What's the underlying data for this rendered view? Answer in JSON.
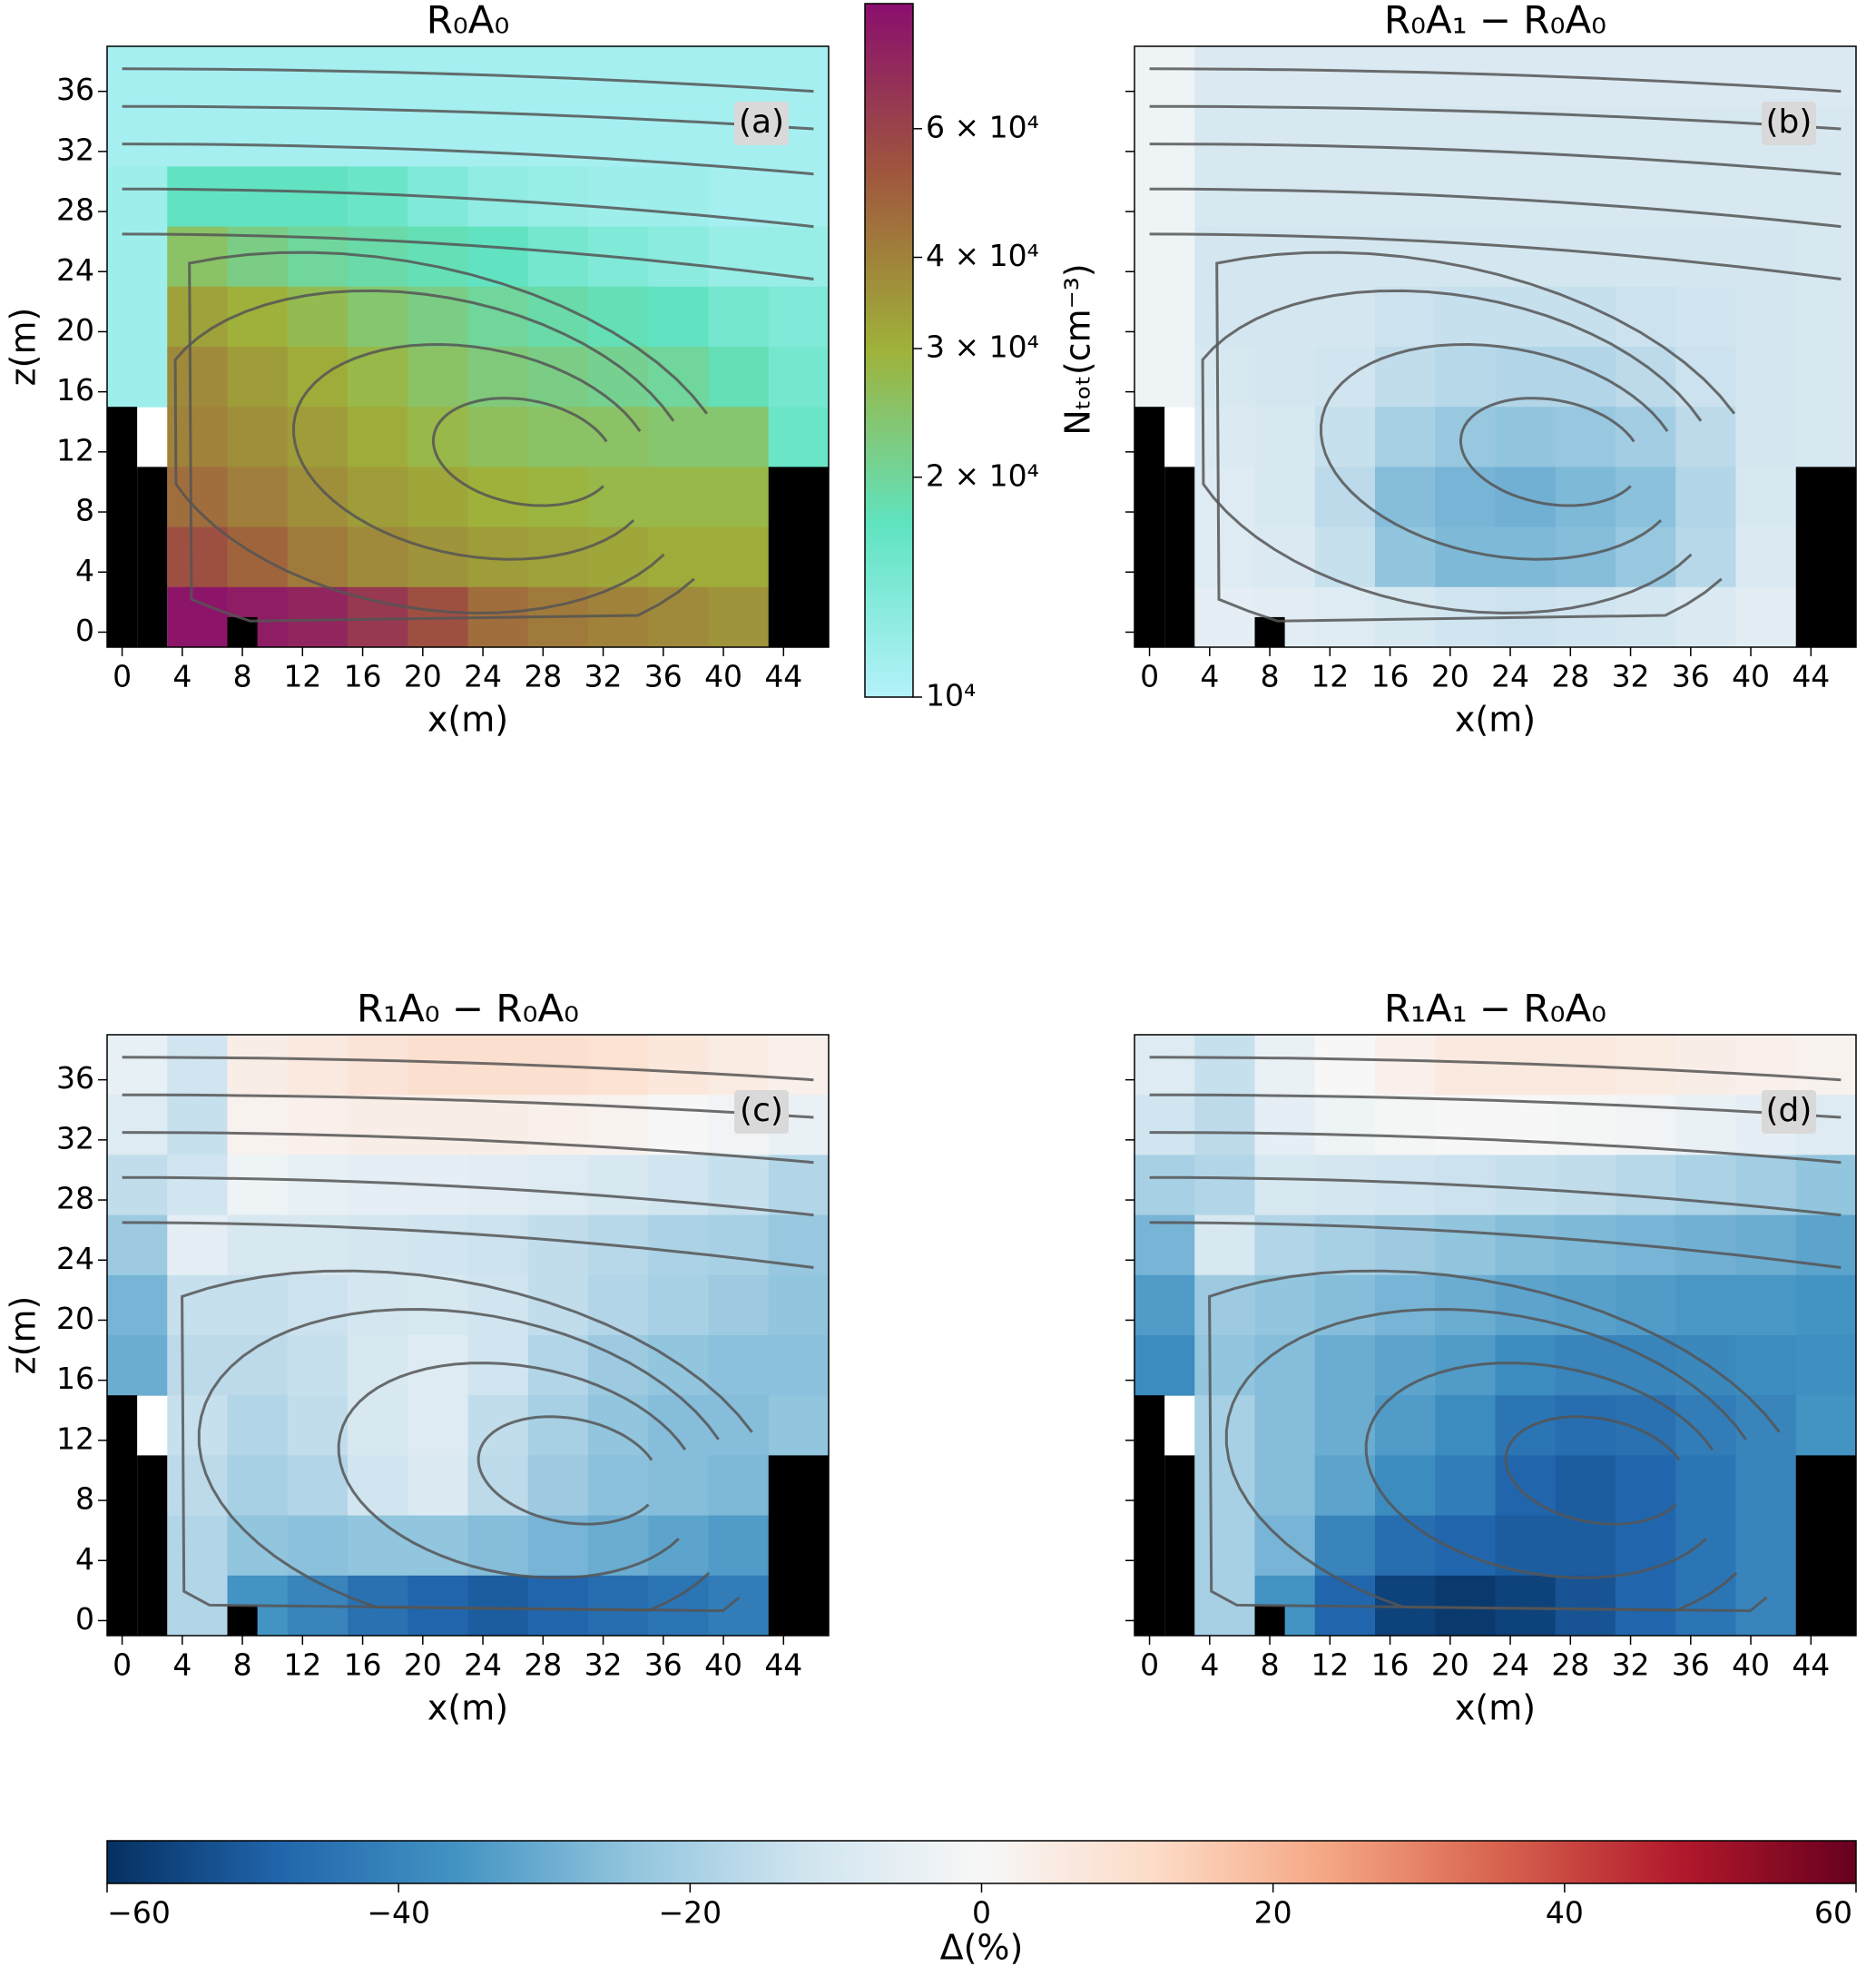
{
  "chart_data": [
    {
      "type": "heatmap",
      "title": "R₀A₀",
      "label": "(a)",
      "xlabel": "x(m)",
      "ylabel": "z(m)",
      "xlim": [
        -1,
        47
      ],
      "ylim": [
        -1,
        39
      ],
      "xticks": [
        0,
        4,
        8,
        12,
        16,
        20,
        24,
        28,
        32,
        36,
        40,
        44
      ],
      "yticks": [
        0,
        4,
        8,
        12,
        16,
        20,
        24,
        28,
        32,
        36
      ],
      "ytick_labels": true,
      "z": [
        [
          11000,
          11000,
          11000,
          11000,
          11000,
          11000,
          11000,
          11000,
          11000,
          11000,
          11000,
          11000
        ],
        [
          11000,
          11000,
          11000,
          11000,
          11000,
          11000,
          11000,
          11000,
          11000,
          11000,
          11000,
          11000
        ],
        [
          11500,
          17000,
          17000,
          17000,
          16000,
          14000,
          12500,
          12000,
          11500,
          11500,
          11000,
          11000
        ],
        [
          11500,
          25000,
          22000,
          20000,
          19000,
          18000,
          17000,
          15000,
          14000,
          13000,
          12000,
          12000
        ],
        [
          11500,
          33000,
          30000,
          27000,
          24000,
          22000,
          20000,
          19000,
          18000,
          17000,
          15000,
          14000
        ],
        [
          11500,
          38000,
          34000,
          31000,
          28000,
          25000,
          23000,
          22000,
          21000,
          20000,
          18000,
          15000
        ],
        [
          null,
          40000,
          37000,
          34000,
          31000,
          28000,
          26000,
          25000,
          25000,
          24000,
          24000,
          16000
        ],
        [
          null,
          45000,
          41000,
          37000,
          34000,
          32000,
          30000,
          29000,
          28000,
          28000,
          28000,
          null
        ],
        [
          null,
          55000,
          48000,
          42000,
          38000,
          36000,
          34000,
          33000,
          32000,
          31000,
          31000,
          null
        ],
        [
          null,
          85000,
          80000,
          75000,
          65000,
          55000,
          45000,
          42000,
          40000,
          38000,
          36000,
          null
        ]
      ]
    },
    {
      "type": "heatmap",
      "title": "R₀A₁ − R₀A₀",
      "label": "(b)",
      "xlabel": "x(m)",
      "xlim": [
        -1,
        47
      ],
      "ylim": [
        -1,
        39
      ],
      "xticks": [
        0,
        4,
        8,
        12,
        16,
        20,
        24,
        28,
        32,
        36,
        40,
        44
      ],
      "yticks": [
        0,
        4,
        8,
        12,
        16,
        20,
        24,
        28,
        32,
        36
      ],
      "ytick_labels": false,
      "z": [
        [
          -3,
          -9,
          -9,
          -9,
          -9,
          -9,
          -9,
          -9,
          -9,
          -9,
          -9,
          -9
        ],
        [
          -3,
          -10,
          -10,
          -10,
          -10,
          -10,
          -10,
          -10,
          -10,
          -10,
          -10,
          -10
        ],
        [
          -3,
          -10,
          -10,
          -10,
          -10,
          -10,
          -10,
          -10,
          -10,
          -10,
          -10,
          -10
        ],
        [
          -3,
          -11,
          -11,
          -11,
          -11,
          -11,
          -11,
          -11,
          -11,
          -11,
          -11,
          -10
        ],
        [
          -3,
          -11,
          -11,
          -11,
          -13,
          -14,
          -14,
          -14,
          -13,
          -12,
          -11,
          -10
        ],
        [
          -3,
          -10,
          -11,
          -12,
          -15,
          -17,
          -18,
          -18,
          -16,
          -13,
          -11,
          -10
        ],
        [
          null,
          -9,
          -10,
          -14,
          -20,
          -23,
          -24,
          -23,
          -21,
          -16,
          -11,
          -10
        ],
        [
          null,
          -8,
          -10,
          -16,
          -26,
          -28,
          -29,
          -27,
          -25,
          -18,
          -10,
          null
        ],
        [
          null,
          -8,
          -9,
          -14,
          -24,
          -27,
          -27,
          -26,
          -23,
          -17,
          -9,
          null
        ],
        [
          null,
          -6,
          -7,
          -8,
          -10,
          -12,
          -13,
          -12,
          -11,
          -9,
          -7,
          null
        ]
      ]
    },
    {
      "type": "heatmap",
      "title": "R₁A₀ − R₀A₀",
      "label": "(c)",
      "xlabel": "x(m)",
      "ylabel": "z(m)",
      "xlim": [
        -1,
        47
      ],
      "ylim": [
        -1,
        39
      ],
      "xticks": [
        0,
        4,
        8,
        12,
        16,
        20,
        24,
        28,
        32,
        36,
        40,
        44
      ],
      "yticks": [
        0,
        4,
        8,
        12,
        16,
        20,
        24,
        28,
        32,
        36
      ],
      "ytick_labels": true,
      "z": [
        [
          -5,
          -12,
          4,
          6,
          8,
          10,
          10,
          10,
          9,
          7,
          5,
          3
        ],
        [
          -8,
          -14,
          2,
          3,
          4,
          4,
          4,
          3,
          2,
          0,
          -2,
          -4
        ],
        [
          -15,
          -12,
          -3,
          -5,
          -6,
          -6,
          -7,
          -8,
          -10,
          -12,
          -14,
          -18
        ],
        [
          -22,
          -6,
          -10,
          -10,
          -11,
          -12,
          -13,
          -15,
          -17,
          -19,
          -20,
          -23
        ],
        [
          -28,
          -14,
          -14,
          -13,
          -11,
          -10,
          -12,
          -15,
          -18,
          -20,
          -22,
          -24
        ],
        [
          -30,
          -16,
          -16,
          -14,
          -10,
          -8,
          -12,
          -18,
          -22,
          -24,
          -25,
          -25
        ],
        [
          null,
          -14,
          -18,
          -15,
          -10,
          -8,
          -15,
          -20,
          -24,
          -26,
          -26,
          -24
        ],
        [
          null,
          -16,
          -20,
          -18,
          -12,
          -9,
          -16,
          -22,
          -25,
          -26,
          -27,
          null
        ],
        [
          null,
          -18,
          -24,
          -25,
          -24,
          -24,
          -26,
          -28,
          -30,
          -32,
          -34,
          null
        ],
        [
          null,
          -18,
          -36,
          -40,
          -45,
          -48,
          -50,
          -48,
          -46,
          -44,
          -42,
          null
        ]
      ]
    },
    {
      "type": "heatmap",
      "title": "R₁A₁ − R₀A₀",
      "label": "(d)",
      "xlabel": "x(m)",
      "xlim": [
        -1,
        47
      ],
      "ylim": [
        -1,
        39
      ],
      "xticks": [
        0,
        4,
        8,
        12,
        16,
        20,
        24,
        28,
        32,
        36,
        40,
        44
      ],
      "yticks": [
        0,
        4,
        8,
        12,
        16,
        20,
        24,
        28,
        32,
        36
      ],
      "ytick_labels": false,
      "z": [
        [
          -8,
          -14,
          -4,
          0,
          3,
          6,
          6,
          6,
          5,
          4,
          3,
          2
        ],
        [
          -12,
          -16,
          -6,
          -3,
          -1,
          0,
          0,
          -1,
          -2,
          -4,
          -6,
          -8
        ],
        [
          -20,
          -18,
          -10,
          -11,
          -12,
          -13,
          -14,
          -15,
          -17,
          -19,
          -21,
          -24
        ],
        [
          -28,
          -10,
          -18,
          -20,
          -22,
          -24,
          -26,
          -27,
          -28,
          -29,
          -30,
          -32
        ],
        [
          -34,
          -22,
          -24,
          -26,
          -28,
          -30,
          -32,
          -33,
          -34,
          -35,
          -35,
          -36
        ],
        [
          -38,
          -24,
          -26,
          -30,
          -32,
          -34,
          -38,
          -40,
          -40,
          -39,
          -38,
          -37
        ],
        [
          null,
          -20,
          -26,
          -30,
          -34,
          -38,
          -44,
          -46,
          -45,
          -42,
          -40,
          -36
        ],
        [
          null,
          -20,
          -26,
          -32,
          -38,
          -42,
          -48,
          -50,
          -48,
          -44,
          -40,
          null
        ],
        [
          null,
          -20,
          -28,
          -40,
          -46,
          -48,
          -50,
          -50,
          -48,
          -44,
          -40,
          null
        ],
        [
          null,
          -20,
          -36,
          -48,
          -56,
          -58,
          -56,
          -52,
          -48,
          -44,
          -40,
          null
        ]
      ]
    },
    {
      "type": "colorbar",
      "orientation": "vertical",
      "log": true,
      "label": "Nₜₒₜ(cm⁻³)",
      "ylim": [
        10000,
        89000
      ],
      "yticks": [
        {
          "value": 10000,
          "label": "10⁴"
        },
        {
          "value": 20000,
          "label": "2 × 10⁴"
        },
        {
          "value": 30000,
          "label": "3 × 10⁴"
        },
        {
          "value": 40000,
          "label": "4 × 10⁴"
        },
        {
          "value": 60000,
          "label": "6 × 10⁴"
        }
      ],
      "colors": [
        "#b4f2fb",
        "#5fe3c0",
        "#9fb23a",
        "#a0583c",
        "#8a0f6e"
      ]
    },
    {
      "type": "colorbar",
      "orientation": "horizontal",
      "log": false,
      "label": "Δ(%)",
      "xlim": [
        -60,
        60
      ],
      "xticks": [
        {
          "value": -60,
          "label": "−60"
        },
        {
          "value": -40,
          "label": "−40"
        },
        {
          "value": -20,
          "label": "−20"
        },
        0,
        20,
        40,
        60
      ],
      "colors": [
        "#053061",
        "#2166ac",
        "#4393c3",
        "#92c5de",
        "#d1e5f0",
        "#f7f7f7",
        "#fddbc7",
        "#f4a582",
        "#d6604d",
        "#b2182b",
        "#67001f"
      ]
    }
  ]
}
